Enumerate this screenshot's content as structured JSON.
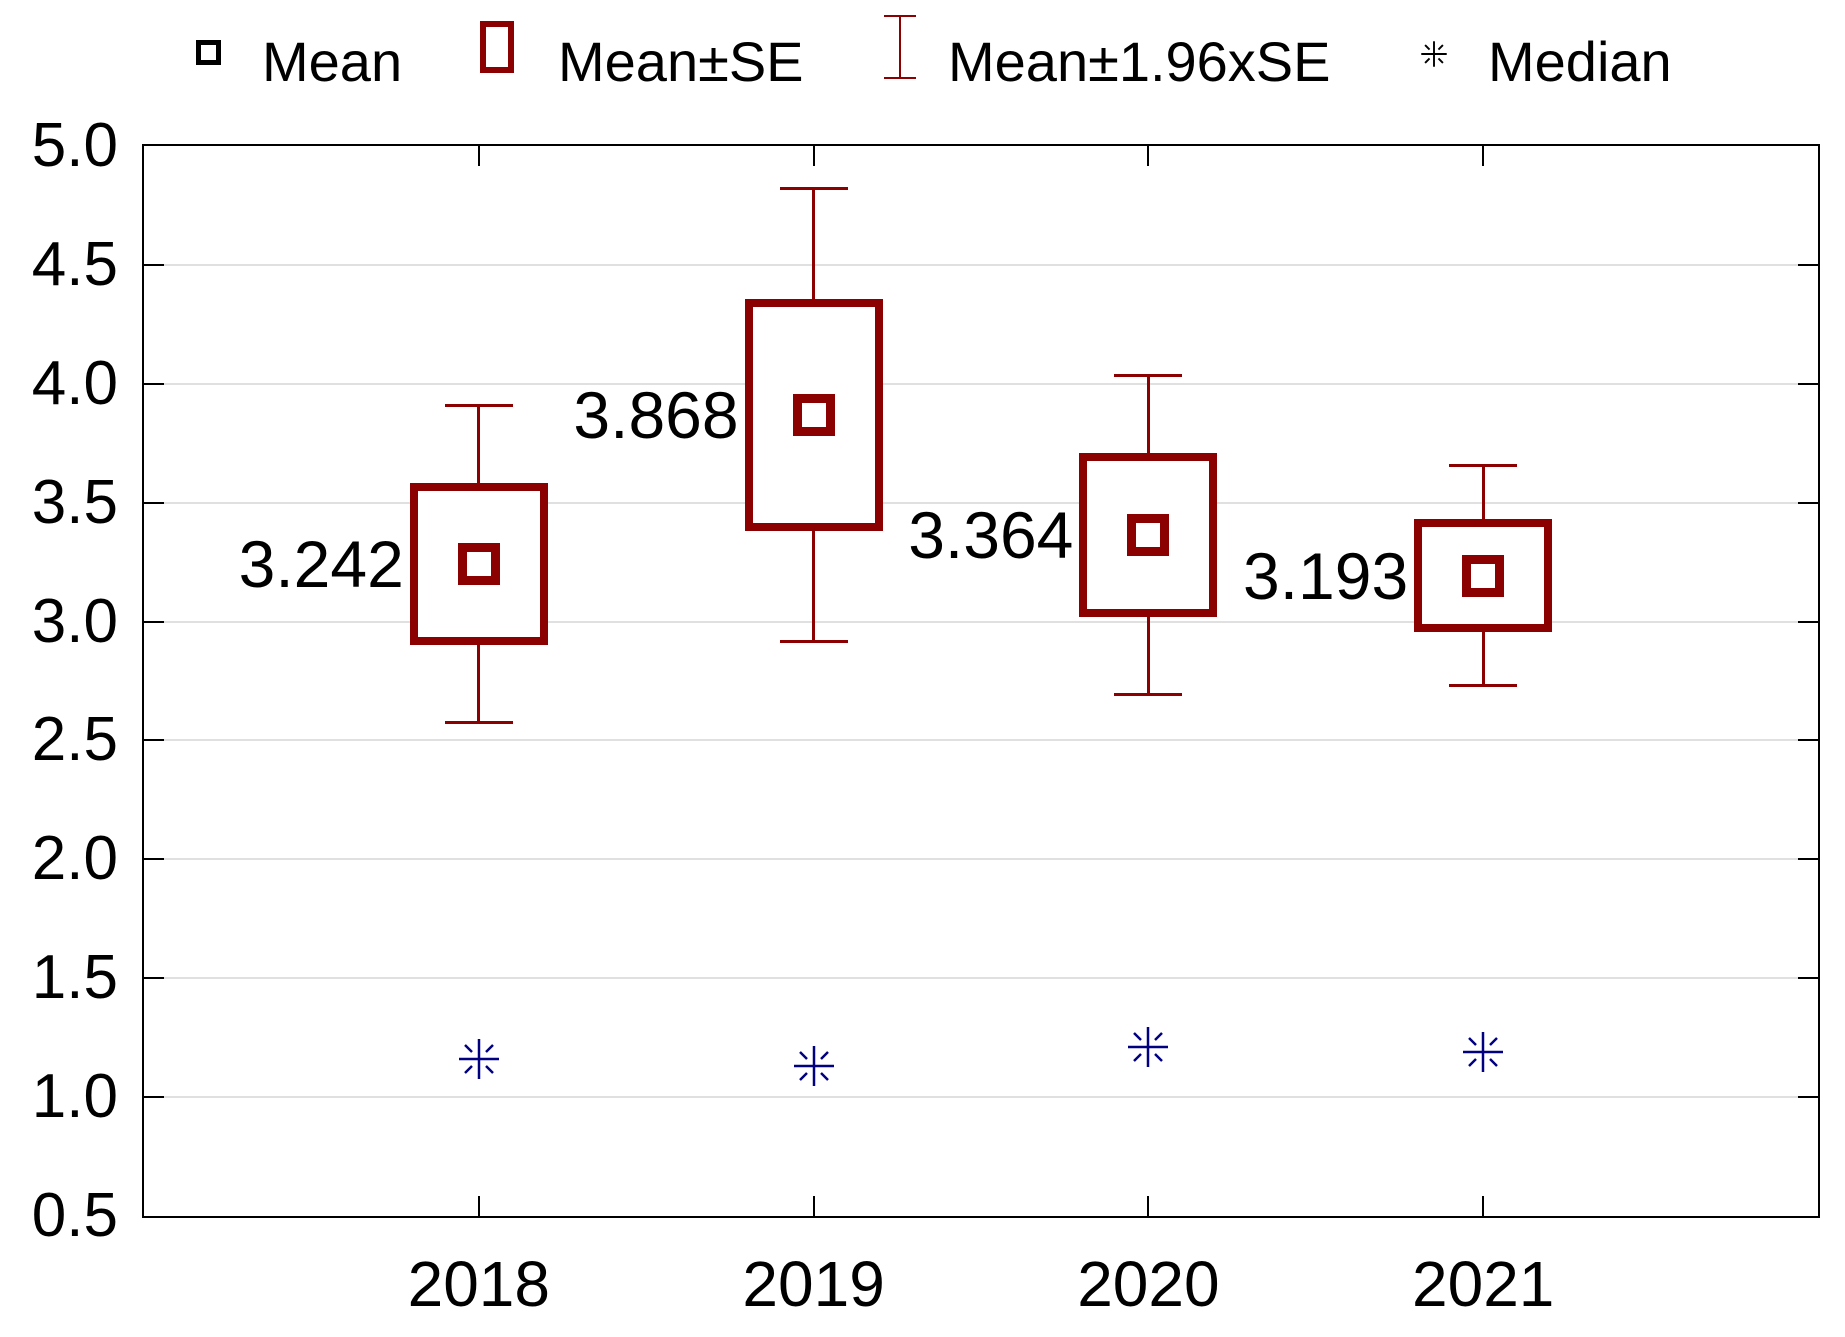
{
  "legend": {
    "items": [
      {
        "label": "Mean"
      },
      {
        "label": "Mean±SE"
      },
      {
        "label": "Mean±1.96xSE"
      },
      {
        "label": "Median"
      }
    ]
  },
  "axes": {
    "y": {
      "min": 0.5,
      "max": 5.0,
      "step": 0.5,
      "tick_labels": [
        "5.0",
        "4.5",
        "4.0",
        "3.5",
        "3.0",
        "2.5",
        "2.0",
        "1.5",
        "1.0",
        "0.5"
      ]
    },
    "x": {
      "categories": [
        "2018",
        "2019",
        "2020",
        "2021"
      ]
    }
  },
  "chart_data": {
    "type": "box",
    "description": "Mean / Mean±SE / Mean±1.96xSE whisker plot with medians, by year",
    "categories": [
      "2018",
      "2019",
      "2020",
      "2021"
    ],
    "whisker_multiplier": 1.96,
    "series": [
      {
        "category": "2018",
        "mean": 3.242,
        "se": 0.342,
        "box_low": 2.9,
        "box_high": 3.584,
        "whisker_low": 2.572,
        "whisker_high": 3.912,
        "median": 1.16,
        "mean_label": "3.242"
      },
      {
        "category": "2019",
        "mean": 3.868,
        "se": 0.487,
        "box_low": 3.381,
        "box_high": 4.355,
        "whisker_low": 2.913,
        "whisker_high": 4.823,
        "median": 1.13,
        "mean_label": "3.868"
      },
      {
        "category": "2020",
        "mean": 3.364,
        "se": 0.344,
        "box_low": 3.02,
        "box_high": 3.708,
        "whisker_low": 2.69,
        "whisker_high": 4.038,
        "median": 1.21,
        "mean_label": "3.364"
      },
      {
        "category": "2021",
        "mean": 3.193,
        "se": 0.237,
        "box_low": 2.956,
        "box_high": 3.43,
        "whisker_low": 2.728,
        "whisker_high": 3.658,
        "median": 1.19,
        "mean_label": "3.193"
      }
    ],
    "ylim": [
      0.5,
      5.0
    ],
    "grid": "horizontal",
    "legend_position": "top",
    "colors": {
      "box": "#8B0000",
      "whisker": "#8B0000",
      "mean_marker": "#8B0000",
      "median_marker": "#000080",
      "legend_mean_symbol": "#000000",
      "legend_median_symbol": "#000000",
      "gridline": "#E0E0E0",
      "axis": "#000000",
      "text": "#000000",
      "background": "#FFFFFF"
    }
  }
}
